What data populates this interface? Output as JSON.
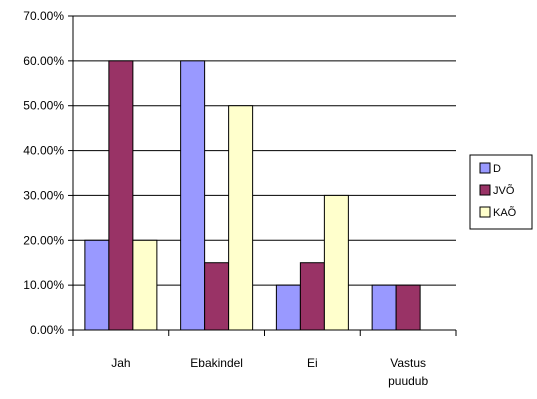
{
  "chart_data": {
    "type": "bar",
    "categories": [
      "Jah",
      "Ebakindel",
      "Ei",
      "Vastus puudub"
    ],
    "category_label_lines": [
      [
        "Jah"
      ],
      [
        "Ebakindel"
      ],
      [
        "Ei"
      ],
      [
        "Vastus",
        "puudub"
      ]
    ],
    "series": [
      {
        "name": "D",
        "values": [
          20,
          60,
          10,
          10
        ],
        "color": "#9999FF"
      },
      {
        "name": "JVÕ",
        "values": [
          60,
          15,
          15,
          10
        ],
        "color": "#993366"
      },
      {
        "name": "KAÕ",
        "values": [
          20,
          50,
          30,
          0
        ],
        "color": "#FFFFCC"
      }
    ],
    "y_tick_labels": [
      "0.00%",
      "10.00%",
      "20.00%",
      "30.00%",
      "40.00%",
      "50.00%",
      "60.00%",
      "70.00%"
    ],
    "y_unit": "percent",
    "ylim": [
      0,
      70
    ],
    "y_step": 10,
    "grid": true,
    "legend_position": "right",
    "bar_outline_color": "#000000",
    "grid_color": "#000000"
  }
}
